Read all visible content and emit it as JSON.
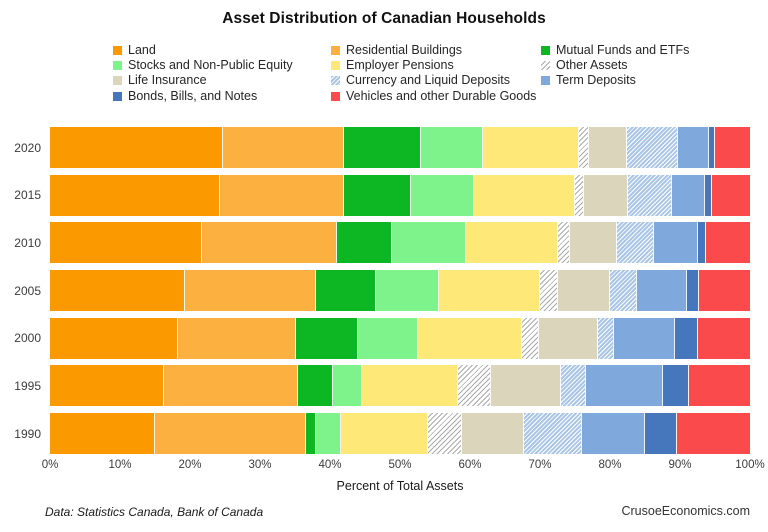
{
  "title": "Asset Distribution of Canadian Households",
  "footer": {
    "source": "Data: Statistics Canada, Bank of Canada",
    "brand": "CrusoeEconomics.com"
  },
  "chart_data": {
    "type": "bar",
    "orientation": "horizontal",
    "stacked": true,
    "title": "Asset Distribution of Canadian Households",
    "xlabel": "Percent of Total Assets",
    "ylabel": "",
    "xlim": [
      0,
      100
    ],
    "grid": false,
    "legend_position": "top",
    "x_ticks": [
      "0%",
      "10%",
      "20%",
      "30%",
      "40%",
      "50%",
      "60%",
      "70%",
      "80%",
      "90%",
      "100%"
    ],
    "categories": [
      "2020",
      "2015",
      "2010",
      "2005",
      "2000",
      "1995",
      "1990"
    ],
    "series": [
      {
        "name": "Land",
        "color": "#FB9A00",
        "pattern": "solid",
        "values": [
          24.5,
          24.1,
          21.5,
          19.2,
          18.1,
          16.2,
          14.9
        ]
      },
      {
        "name": "Residential Buildings",
        "color": "#FBB040",
        "pattern": "solid",
        "values": [
          17.3,
          17.7,
          19.3,
          18.7,
          16.9,
          19.1,
          21.6
        ]
      },
      {
        "name": "Mutual Funds and ETFs",
        "color": "#0CB723",
        "pattern": "solid",
        "values": [
          11.1,
          9.6,
          7.9,
          8.5,
          8.9,
          5.0,
          1.4
        ]
      },
      {
        "name": "Stocks and Non-Public Equity",
        "color": "#7EF38C",
        "pattern": "solid",
        "values": [
          8.8,
          9.0,
          10.6,
          9.0,
          8.5,
          4.1,
          3.6
        ]
      },
      {
        "name": "Employer Pensions",
        "color": "#FEE878",
        "pattern": "solid",
        "values": [
          13.8,
          14.4,
          13.2,
          14.5,
          14.9,
          13.8,
          12.3
        ]
      },
      {
        "name": "Other Assets",
        "color": "#ABABAB",
        "pattern": "hatch-gray",
        "values": [
          1.4,
          1.3,
          1.7,
          2.6,
          2.4,
          4.6,
          4.9
        ]
      },
      {
        "name": "Life Insurance",
        "color": "#DBD6BB",
        "pattern": "solid",
        "values": [
          5.4,
          6.4,
          6.7,
          7.4,
          8.5,
          10.1,
          8.9
        ]
      },
      {
        "name": "Currency and Liquid Deposits",
        "color": "#A9C6EA",
        "pattern": "hatch-blue",
        "values": [
          7.3,
          6.2,
          5.2,
          3.8,
          2.2,
          3.5,
          8.2
        ]
      },
      {
        "name": "Term Deposits",
        "color": "#7FA8DD",
        "pattern": "solid",
        "values": [
          4.4,
          4.7,
          6.4,
          7.2,
          8.8,
          11.1,
          9.1
        ]
      },
      {
        "name": "Bonds, Bills, and Notes",
        "color": "#4677BD",
        "pattern": "solid",
        "values": [
          0.8,
          1.0,
          1.1,
          1.7,
          3.2,
          3.7,
          4.5
        ]
      },
      {
        "name": "Vehicles and other Durable Goods",
        "color": "#FB4A4B",
        "pattern": "solid",
        "values": [
          5.2,
          5.6,
          6.4,
          7.4,
          7.6,
          8.8,
          10.6
        ]
      }
    ],
    "legend_columns": [
      [
        "Land",
        "Stocks and Non-Public Equity",
        "Life Insurance",
        "Bonds, Bills, and Notes"
      ],
      [
        "Residential Buildings",
        "Employer Pensions",
        "Currency and Liquid Deposits",
        "Vehicles and other Durable Goods"
      ],
      [
        "Mutual Funds and ETFs",
        "Other Assets",
        "Term Deposits"
      ]
    ]
  }
}
